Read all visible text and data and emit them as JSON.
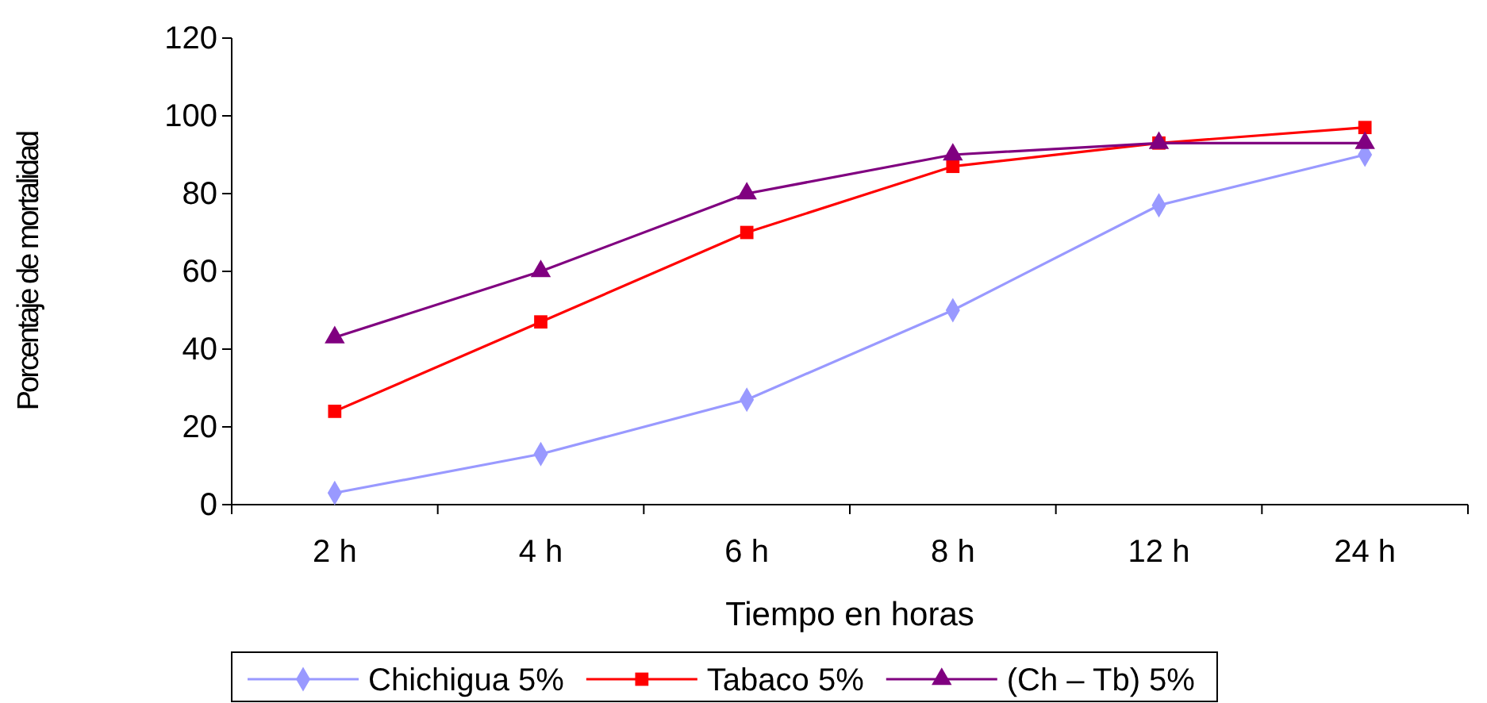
{
  "chart_data": {
    "type": "line",
    "xlabel": "Tiempo en horas",
    "ylabel": "Porcentaje de mortalidad",
    "categories": [
      "2 h",
      "4 h",
      "6 h",
      "8 h",
      "12 h",
      "24 h"
    ],
    "series": [
      {
        "name": "Chichigua 5%",
        "color": "#9999ff",
        "marker": "diamond",
        "values": [
          3,
          13,
          27,
          50,
          77,
          90
        ]
      },
      {
        "name": "Tabaco 5%",
        "color": "#ff0000",
        "marker": "square",
        "values": [
          24,
          47,
          70,
          87,
          93,
          97
        ]
      },
      {
        "name": "(Ch – Tb) 5%",
        "color": "#800080",
        "marker": "triangle",
        "values": [
          43,
          60,
          80,
          90,
          93,
          93
        ]
      }
    ],
    "ylim": [
      0,
      120
    ],
    "yticks": [
      0,
      20,
      40,
      60,
      80,
      100,
      120
    ],
    "grid": false,
    "legend": "bottom"
  }
}
